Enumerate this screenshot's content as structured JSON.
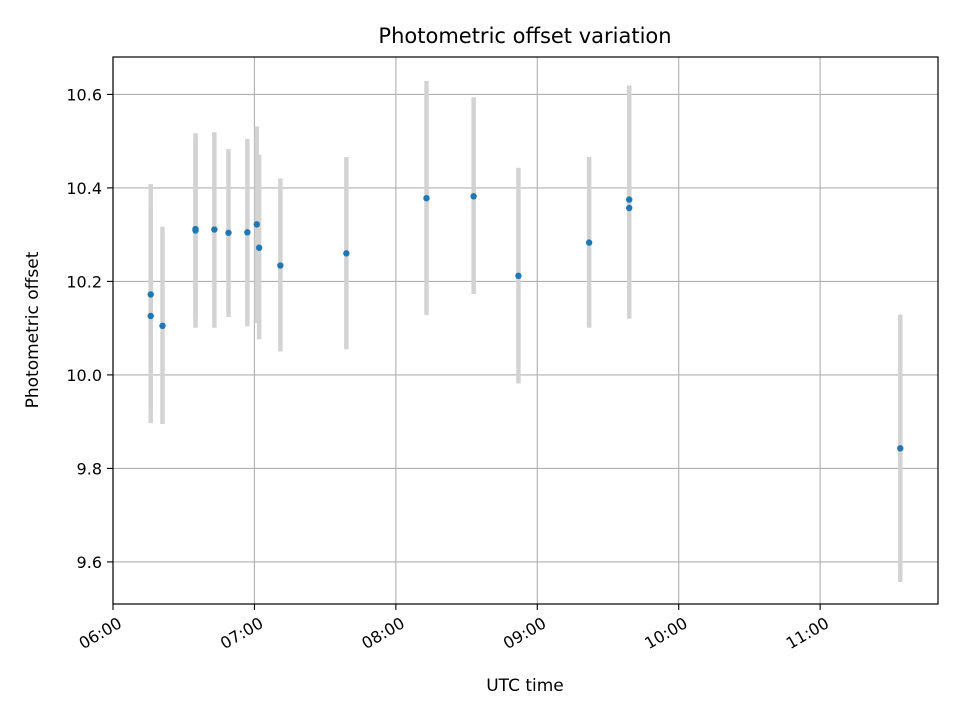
{
  "chart_data": {
    "type": "scatter",
    "title": "Photometric offset variation",
    "xlabel": "UTC time",
    "ylabel": "Photometric offset",
    "xlim": [
      "06:00",
      "11:50"
    ],
    "ylim": [
      9.51,
      10.68
    ],
    "x_tick_labels": [
      "06:00",
      "07:00",
      "08:00",
      "09:00",
      "10:00",
      "11:00"
    ],
    "y_tick_labels": [
      "9.6",
      "9.8",
      "10.0",
      "10.2",
      "10.4",
      "10.6"
    ],
    "grid": true,
    "point_color": "#1f77b4",
    "errorbar_color": "#d3d3d3",
    "points": [
      {
        "x": "06:16",
        "y": 10.172,
        "lo": 9.935,
        "hi": 10.408
      },
      {
        "x": "06:16",
        "y": 10.126,
        "lo": 9.897,
        "hi": 10.356
      },
      {
        "x": "06:21",
        "y": 10.105,
        "lo": 9.895,
        "hi": 10.317
      },
      {
        "x": "06:35",
        "y": 10.312,
        "lo": 10.12,
        "hi": 10.505
      },
      {
        "x": "06:35",
        "y": 10.309,
        "lo": 10.101,
        "hi": 10.517
      },
      {
        "x": "06:43",
        "y": 10.311,
        "lo": 10.101,
        "hi": 10.519
      },
      {
        "x": "06:49",
        "y": 10.304,
        "lo": 10.124,
        "hi": 10.483
      },
      {
        "x": "06:57",
        "y": 10.305,
        "lo": 10.104,
        "hi": 10.505
      },
      {
        "x": "07:01",
        "y": 10.322,
        "lo": 10.111,
        "hi": 10.532
      },
      {
        "x": "07:02",
        "y": 10.272,
        "lo": 10.076,
        "hi": 10.471
      },
      {
        "x": "07:11",
        "y": 10.234,
        "lo": 10.05,
        "hi": 10.42
      },
      {
        "x": "07:39",
        "y": 10.26,
        "lo": 10.055,
        "hi": 10.466
      },
      {
        "x": "08:13",
        "y": 10.378,
        "lo": 10.128,
        "hi": 10.629
      },
      {
        "x": "08:33",
        "y": 10.382,
        "lo": 10.173,
        "hi": 10.594
      },
      {
        "x": "08:52",
        "y": 10.212,
        "lo": 9.982,
        "hi": 10.443
      },
      {
        "x": "09:22",
        "y": 10.283,
        "lo": 10.101,
        "hi": 10.466
      },
      {
        "x": "09:39",
        "y": 10.375,
        "lo": 10.133,
        "hi": 10.619
      },
      {
        "x": "09:39",
        "y": 10.357,
        "lo": 10.12,
        "hi": 10.595
      },
      {
        "x": "11:34",
        "y": 9.843,
        "lo": 9.557,
        "hi": 10.129
      }
    ]
  }
}
